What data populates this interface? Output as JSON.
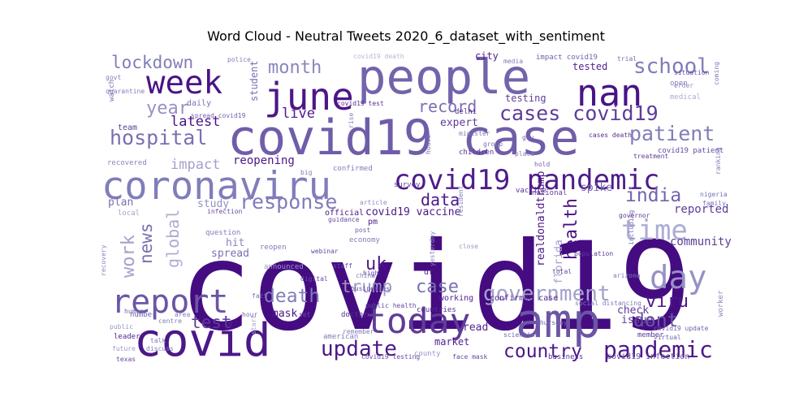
{
  "title": "Word Cloud - Neutral Tweets 2020_6_dataset_with_sentiment",
  "chart_data": {
    "type": "wordcloud",
    "title": "Word Cloud - Neutral Tweets 2020_6_dataset_with_sentiment",
    "colormap": "purples",
    "words": [
      {
        "text": "covid19",
        "weight": 1.0,
        "shade": 0.95
      },
      {
        "text": "covid19 case",
        "weight": 0.48,
        "shade": 0.62
      },
      {
        "text": "people",
        "weight": 0.47,
        "shade": 0.6
      },
      {
        "text": "covid",
        "weight": 0.45,
        "shade": 0.9
      },
      {
        "text": "amp",
        "weight": 0.46,
        "shade": 0.65
      },
      {
        "text": "coronaviru",
        "weight": 0.37,
        "shade": 0.5
      },
      {
        "text": "june",
        "weight": 0.36,
        "shade": 0.9
      },
      {
        "text": "nan",
        "weight": 0.35,
        "shade": 0.92
      },
      {
        "text": "today",
        "weight": 0.34,
        "shade": 0.75
      },
      {
        "text": "report",
        "weight": 0.31,
        "shade": 0.65
      },
      {
        "text": "week",
        "weight": 0.3,
        "shade": 0.92
      },
      {
        "text": "day",
        "weight": 0.3,
        "shade": 0.38
      },
      {
        "text": "covid19 pandemic",
        "weight": 0.26,
        "shade": 0.88
      },
      {
        "text": "time",
        "weight": 0.26,
        "shade": 0.25
      },
      {
        "text": "pandemic",
        "weight": 0.21,
        "shade": 0.9
      },
      {
        "text": "update",
        "weight": 0.19,
        "shade": 0.9
      },
      {
        "text": "school",
        "weight": 0.19,
        "shade": 0.5
      },
      {
        "text": "government",
        "weight": 0.19,
        "shade": 0.3
      },
      {
        "text": "cases covid19",
        "weight": 0.18,
        "shade": 0.75
      },
      {
        "text": "patient",
        "weight": 0.18,
        "shade": 0.5
      },
      {
        "text": "response",
        "weight": 0.18,
        "shade": 0.5
      },
      {
        "text": "hospital",
        "weight": 0.18,
        "shade": 0.55
      },
      {
        "text": "death",
        "weight": 0.17,
        "shade": 0.5
      },
      {
        "text": "india",
        "weight": 0.17,
        "shade": 0.6
      },
      {
        "text": "country",
        "weight": 0.17,
        "shade": 0.9
      },
      {
        "text": "dont",
        "weight": 0.17,
        "shade": 0.65
      },
      {
        "text": "work",
        "weight": 0.16,
        "shade": 0.3
      },
      {
        "text": "viru",
        "weight": 0.16,
        "shade": 0.9
      },
      {
        "text": "uk",
        "weight": 0.16,
        "shade": 0.9
      },
      {
        "text": "case",
        "weight": 0.16,
        "shade": 0.55
      },
      {
        "text": "month",
        "weight": 0.16,
        "shade": 0.45
      },
      {
        "text": "year",
        "weight": 0.16,
        "shade": 0.38
      },
      {
        "text": "lockdown",
        "weight": 0.15,
        "shade": 0.5
      },
      {
        "text": "trump",
        "weight": 0.15,
        "shade": 0.35
      },
      {
        "text": "test",
        "weight": 0.15,
        "shade": 0.75
      },
      {
        "text": "news",
        "weight": 0.15,
        "shade": 0.55
      },
      {
        "text": "health",
        "weight": 0.15,
        "shade": 0.95
      },
      {
        "text": "data",
        "weight": 0.14,
        "shade": 0.9
      },
      {
        "text": "record",
        "weight": 0.14,
        "shade": 0.55
      },
      {
        "text": "global",
        "weight": 0.14,
        "shade": 0.25
      },
      {
        "text": "live",
        "weight": 0.12,
        "shade": 0.9
      },
      {
        "text": "latest",
        "weight": 0.12,
        "shade": 0.92
      },
      {
        "text": "impact",
        "weight": 0.12,
        "shade": 0.3
      },
      {
        "text": "community",
        "weight": 0.09,
        "shade": 0.75
      },
      {
        "text": "reported",
        "weight": 0.09,
        "shade": 0.75
      },
      {
        "text": "reopening",
        "weight": 0.09,
        "shade": 0.9
      },
      {
        "text": "covid19 vaccine",
        "weight": 0.08,
        "shade": 0.9
      },
      {
        "text": "realdonaldtrump",
        "weight": 0.08,
        "shade": 0.9
      },
      {
        "text": "florida",
        "weight": 0.08,
        "shade": 0.3
      },
      {
        "text": "expert",
        "weight": 0.08,
        "shade": 0.75
      },
      {
        "text": "spike",
        "weight": 0.08,
        "shade": 0.6
      },
      {
        "text": "study",
        "weight": 0.08,
        "shade": 0.4
      },
      {
        "text": "plan",
        "weight": 0.08,
        "shade": 0.55
      },
      {
        "text": "spread",
        "weight": 0.08,
        "shade": 0.55
      },
      {
        "text": "hit",
        "weight": 0.08,
        "shade": 0.45
      },
      {
        "text": "mask",
        "weight": 0.08,
        "shade": 0.9
      },
      {
        "text": "read",
        "weight": 0.08,
        "shade": 0.85
      },
      {
        "text": "check",
        "weight": 0.08,
        "shade": 0.75
      },
      {
        "text": "issue",
        "weight": 0.08,
        "shade": 0.75
      },
      {
        "text": "market",
        "weight": 0.07,
        "shade": 0.85
      },
      {
        "text": "tested",
        "weight": 0.07,
        "shade": 0.85
      },
      {
        "text": "testing",
        "weight": 0.07,
        "shade": 0.75
      },
      {
        "text": "student",
        "weight": 0.07,
        "shade": 0.55
      },
      {
        "text": "city",
        "weight": 0.07,
        "shade": 0.85
      },
      {
        "text": "official",
        "weight": 0.06,
        "shade": 0.9
      },
      {
        "text": "pm",
        "weight": 0.06,
        "shade": 0.85
      },
      {
        "text": "dr",
        "weight": 0.06,
        "shade": 0.85
      },
      {
        "text": "team",
        "weight": 0.06,
        "shade": 0.75
      },
      {
        "text": "daily",
        "weight": 0.06,
        "shade": 0.55
      },
      {
        "text": "working",
        "weight": 0.06,
        "shade": 0.85
      },
      {
        "text": "confirmed case",
        "weight": 0.06,
        "shade": 0.85
      },
      {
        "text": "covid19 infection",
        "weight": 0.06,
        "shade": 0.7
      },
      {
        "text": "covid19 patient",
        "weight": 0.05,
        "shade": 0.7
      },
      {
        "text": "business",
        "weight": 0.05,
        "shade": 0.8
      },
      {
        "text": "countries",
        "weight": 0.05,
        "shade": 0.8
      },
      {
        "text": "doctor",
        "weight": 0.05,
        "shade": 0.8
      },
      {
        "text": "children",
        "weight": 0.05,
        "shade": 0.8
      },
      {
        "text": "delhi",
        "weight": 0.05,
        "shade": 0.85
      },
      {
        "text": "vaccine",
        "weight": 0.05,
        "shade": 0.8
      },
      {
        "text": "economy",
        "weight": 0.05,
        "shade": 0.5
      },
      {
        "text": "open",
        "weight": 0.05,
        "shade": 0.5
      },
      {
        "text": "question",
        "weight": 0.05,
        "shade": 0.5
      },
      {
        "text": "reopen",
        "weight": 0.05,
        "shade": 0.5
      },
      {
        "text": "confirmed",
        "weight": 0.05,
        "shade": 0.5
      },
      {
        "text": "announced",
        "weight": 0.05,
        "shade": 0.35
      },
      {
        "text": "medical",
        "weight": 0.05,
        "shade": 0.25
      },
      {
        "text": "number",
        "weight": 0.05,
        "shade": 0.6
      },
      {
        "text": "survey",
        "weight": 0.05,
        "shade": 0.75
      },
      {
        "text": "national",
        "weight": 0.05,
        "shade": 0.75
      },
      {
        "text": "impact covid19",
        "weight": 0.05,
        "shade": 0.6
      },
      {
        "text": "worker",
        "weight": 0.05,
        "shade": 0.45
      },
      {
        "text": "watch",
        "weight": 0.05,
        "shade": 0.55
      },
      {
        "text": "recovered",
        "weight": 0.05,
        "shade": 0.45
      },
      {
        "text": "local",
        "weight": 0.05,
        "shade": 0.3
      },
      {
        "text": "american",
        "weight": 0.05,
        "shade": 0.5
      },
      {
        "text": "county",
        "weight": 0.05,
        "shade": 0.35
      },
      {
        "text": "leader",
        "weight": 0.05,
        "shade": 0.85
      },
      {
        "text": "member",
        "weight": 0.05,
        "shade": 0.75
      },
      {
        "text": "face mask",
        "weight": 0.04,
        "shade": 0.7
      },
      {
        "text": "covid19 update",
        "weight": 0.04,
        "shade": 0.6
      },
      {
        "text": "covid19 testing",
        "weight": 0.04,
        "shade": 0.7
      },
      {
        "text": "covid19 death",
        "weight": 0.04,
        "shade": 0.2
      },
      {
        "text": "situation",
        "weight": 0.04,
        "shade": 0.7
      },
      {
        "text": "spread covid19",
        "weight": 0.04,
        "shade": 0.6
      },
      {
        "text": "covid19 test",
        "weight": 0.04,
        "shade": 0.8
      },
      {
        "text": "population",
        "weight": 0.04,
        "shade": 0.75
      },
      {
        "text": "treatment",
        "weight": 0.04,
        "shade": 0.75
      },
      {
        "text": "governor",
        "weight": 0.04,
        "shade": 0.75
      },
      {
        "text": "cases death",
        "weight": 0.04,
        "shade": 0.8
      },
      {
        "text": "social distancing",
        "weight": 0.04,
        "shade": 0.5
      },
      {
        "text": "public health",
        "weight": 0.04,
        "shade": 0.7
      },
      {
        "text": "yesterday",
        "weight": 0.04,
        "shade": 0.45
      },
      {
        "text": "high",
        "weight": 0.04,
        "shade": 0.7
      },
      {
        "text": "staff",
        "weight": 0.04,
        "shade": 0.7
      },
      {
        "text": "webinar",
        "weight": 0.04,
        "shade": 0.7
      },
      {
        "text": "article",
        "weight": 0.04,
        "shade": 0.4
      },
      {
        "text": "total",
        "weight": 0.04,
        "shade": 0.7
      },
      {
        "text": "china",
        "weight": 0.04,
        "shade": 0.5
      },
      {
        "text": "businesses",
        "weight": 0.04,
        "shade": 0.7
      },
      {
        "text": "guidance",
        "weight": 0.04,
        "shade": 0.7
      },
      {
        "text": "infection",
        "weight": 0.04,
        "shade": 0.7
      },
      {
        "text": "texas",
        "weight": 0.04,
        "shade": 0.7
      },
      {
        "text": "thursday",
        "weight": 0.04,
        "shade": 0.6
      },
      {
        "text": "virtual",
        "weight": 0.04,
        "shade": 0.6
      },
      {
        "text": "scientist",
        "weight": 0.04,
        "shade": 0.6
      },
      {
        "text": "remember",
        "weight": 0.04,
        "shade": 0.5
      },
      {
        "text": "discuss",
        "weight": 0.04,
        "shade": 0.5
      },
      {
        "text": "future",
        "weight": 0.04,
        "shade": 0.35
      },
      {
        "text": "human",
        "weight": 0.04,
        "shade": 0.6
      },
      {
        "text": "centre",
        "weight": 0.04,
        "shade": 0.5
      },
      {
        "text": "area",
        "weight": 0.04,
        "shade": 0.5
      },
      {
        "text": "hour",
        "weight": 0.04,
        "shade": 0.55
      },
      {
        "text": "fact",
        "weight": 0.04,
        "shade": 0.55
      },
      {
        "text": "set",
        "weight": 0.04,
        "shade": 0.7
      },
      {
        "text": "public",
        "weight": 0.04,
        "shade": 0.35
      },
      {
        "text": "post",
        "weight": 0.04,
        "shade": 0.6
      },
      {
        "text": "digital",
        "weight": 0.04,
        "shade": 0.7
      },
      {
        "text": "close",
        "weight": 0.04,
        "shade": 0.35
      },
      {
        "text": "talk",
        "weight": 0.04,
        "shade": 0.5
      },
      {
        "text": "start",
        "weight": 0.04,
        "shade": 0.3
      },
      {
        "text": "arizona",
        "weight": 0.04,
        "shade": 0.5
      },
      {
        "text": "nigeria",
        "weight": 0.04,
        "shade": 0.55
      },
      {
        "text": "family",
        "weight": 0.04,
        "shade": 0.55
      },
      {
        "text": "including",
        "weight": 0.04,
        "shade": 0.55
      },
      {
        "text": "recovery",
        "weight": 0.04,
        "shade": 0.45
      },
      {
        "text": "gov",
        "weight": 0.04,
        "shade": 0.6
      },
      {
        "text": "order",
        "weight": 0.04,
        "shade": 0.4
      },
      {
        "text": "house",
        "weight": 0.04,
        "shade": 0.55
      },
      {
        "text": "group",
        "weight": 0.04,
        "shade": 0.55
      },
      {
        "text": "place",
        "weight": 0.04,
        "shade": 0.5
      },
      {
        "text": "hold",
        "weight": 0.04,
        "shade": 0.6
      },
      {
        "text": "rise",
        "weight": 0.04,
        "shade": 0.5
      },
      {
        "text": "govt",
        "weight": 0.04,
        "shade": 0.5
      },
      {
        "text": "quarantine",
        "weight": 0.04,
        "shade": 0.5
      },
      {
        "text": "trial",
        "weight": 0.04,
        "shade": 0.55
      },
      {
        "text": "police",
        "weight": 0.04,
        "shade": 0.5
      },
      {
        "text": "media",
        "weight": 0.04,
        "shade": 0.5
      },
      {
        "text": "coming",
        "weight": 0.04,
        "shade": 0.5
      },
      {
        "text": "minister",
        "weight": 0.04,
        "shade": 0.5
      },
      {
        "text": "resident",
        "weight": 0.04,
        "shade": 0.5
      },
      {
        "text": "big",
        "weight": 0.04,
        "shade": 0.5
      },
      {
        "text": "ranking",
        "weight": 0.04,
        "shade": 0.5
      }
    ]
  }
}
